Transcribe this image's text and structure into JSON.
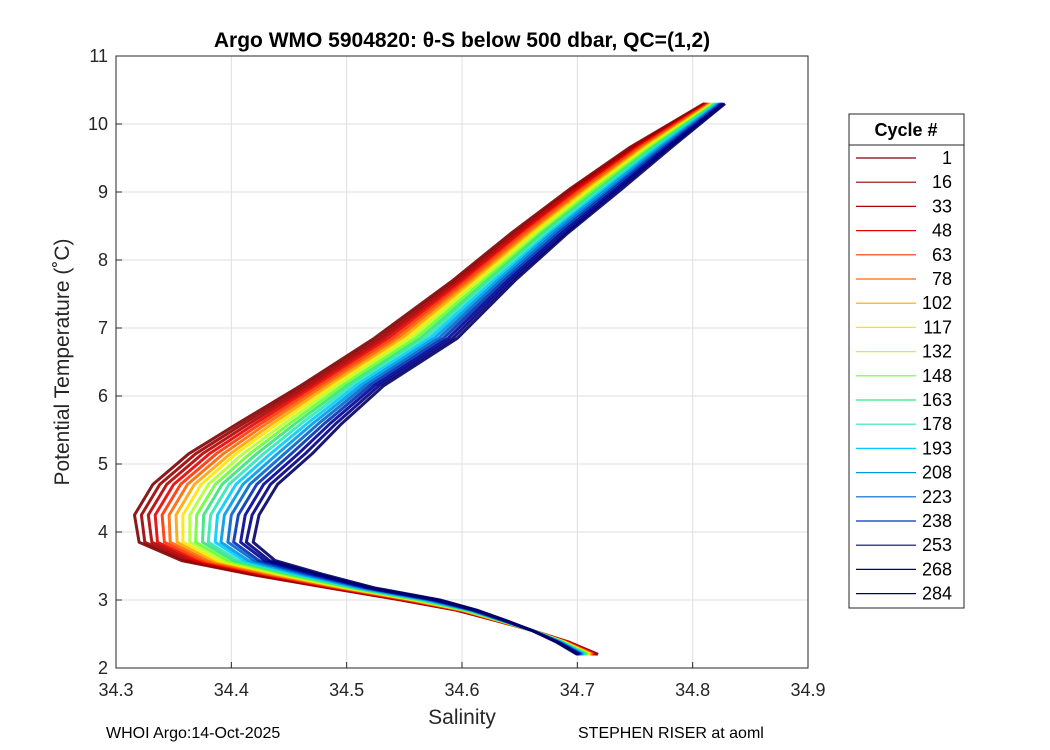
{
  "chart_data": {
    "type": "line",
    "title": "Argo WMO 5904820: θ-S below 500 dbar,  QC=(1,2)",
    "xlabel": "Salinity",
    "ylabel": "Potential Temperature (˚C)",
    "xlim": [
      34.3,
      34.9
    ],
    "ylim": [
      2,
      11
    ],
    "xticks": [
      "34.3",
      "34.4",
      "34.5",
      "34.6",
      "34.7",
      "34.8",
      "34.9"
    ],
    "yticks": [
      "2",
      "3",
      "4",
      "5",
      "6",
      "7",
      "8",
      "9",
      "10",
      "11"
    ],
    "grid": true,
    "legend": {
      "title": "Cycle #",
      "placement": "right",
      "entries": [
        "1",
        "16",
        "33",
        "48",
        "63",
        "78",
        "102",
        "117",
        "132",
        "148",
        "163",
        "178",
        "193",
        "208",
        "223",
        "238",
        "253",
        "268",
        "284"
      ],
      "colors": [
        "#800000",
        "#990000",
        "#b30000",
        "#e60000",
        "#ff3300",
        "#ff6600",
        "#ffa500",
        "#ffe600",
        "#b3ff33",
        "#66ff33",
        "#33e67f",
        "#33e6b3",
        "#00ccff",
        "#0099e6",
        "#0066cc",
        "#0033b3",
        "#000099",
        "#000080",
        "#000066"
      ]
    },
    "series": [
      {
        "name": "1",
        "color": "#800000",
        "s": [
          34.718,
          34.693,
          34.661,
          34.629,
          34.595,
          34.547,
          34.484,
          34.416,
          34.357,
          34.32,
          34.316,
          34.332,
          34.363,
          34.406,
          34.46,
          34.524,
          34.592,
          34.643,
          34.694,
          34.745,
          34.81
        ],
        "t": [
          2.2,
          2.38,
          2.55,
          2.7,
          2.85,
          3.0,
          3.18,
          3.38,
          3.58,
          3.85,
          4.25,
          4.7,
          5.15,
          5.6,
          6.15,
          6.85,
          7.7,
          8.4,
          9.05,
          9.65,
          10.3
        ]
      },
      {
        "name": "16",
        "color": "#990000",
        "s": [
          34.717,
          34.692,
          34.661,
          34.629,
          34.596,
          34.548,
          34.486,
          34.419,
          34.361,
          34.325,
          34.322,
          34.338,
          34.369,
          34.411,
          34.464,
          34.528,
          34.595,
          34.646,
          34.696,
          34.747,
          34.811
        ],
        "t": [
          2.2,
          2.38,
          2.55,
          2.7,
          2.85,
          3.0,
          3.18,
          3.38,
          3.58,
          3.85,
          4.25,
          4.7,
          5.15,
          5.6,
          6.15,
          6.85,
          7.7,
          8.4,
          9.05,
          9.65,
          10.3
        ]
      },
      {
        "name": "33",
        "color": "#b30000",
        "s": [
          34.716,
          34.692,
          34.661,
          34.63,
          34.597,
          34.55,
          34.488,
          34.423,
          34.366,
          34.331,
          34.328,
          34.344,
          34.375,
          34.416,
          34.468,
          34.532,
          34.598,
          34.649,
          34.699,
          34.749,
          34.812
        ],
        "t": [
          2.2,
          2.38,
          2.55,
          2.7,
          2.85,
          3.0,
          3.18,
          3.38,
          3.58,
          3.85,
          4.25,
          4.7,
          5.15,
          5.6,
          6.15,
          6.85,
          7.7,
          8.4,
          9.05,
          9.65,
          10.3
        ]
      },
      {
        "name": "48",
        "color": "#e60000",
        "s": [
          34.715,
          34.691,
          34.661,
          34.63,
          34.598,
          34.552,
          34.49,
          34.426,
          34.37,
          34.336,
          34.334,
          34.35,
          34.381,
          34.421,
          34.472,
          34.536,
          34.601,
          34.651,
          34.701,
          34.751,
          34.813
        ],
        "t": [
          2.2,
          2.38,
          2.55,
          2.7,
          2.85,
          3.0,
          3.18,
          3.38,
          3.58,
          3.85,
          4.25,
          4.7,
          5.15,
          5.6,
          6.15,
          6.85,
          7.7,
          8.4,
          9.05,
          9.65,
          10.3
        ]
      },
      {
        "name": "63",
        "color": "#ff3300",
        "s": [
          34.714,
          34.69,
          34.661,
          34.631,
          34.599,
          34.554,
          34.493,
          34.43,
          34.375,
          34.342,
          34.34,
          34.356,
          34.387,
          34.426,
          34.476,
          34.54,
          34.604,
          34.654,
          34.704,
          34.753,
          34.814
        ],
        "t": [
          2.2,
          2.38,
          2.55,
          2.7,
          2.85,
          3.0,
          3.18,
          3.38,
          3.58,
          3.85,
          4.25,
          4.7,
          5.15,
          5.6,
          6.15,
          6.85,
          7.7,
          8.4,
          9.05,
          9.65,
          10.3
        ]
      },
      {
        "name": "78",
        "color": "#ff6600",
        "s": [
          34.713,
          34.69,
          34.661,
          34.631,
          34.6,
          34.556,
          34.495,
          34.433,
          34.379,
          34.347,
          34.346,
          34.362,
          34.393,
          34.431,
          34.48,
          34.544,
          34.607,
          34.657,
          34.706,
          34.755,
          34.815
        ],
        "t": [
          2.2,
          2.38,
          2.55,
          2.7,
          2.85,
          3.0,
          3.18,
          3.38,
          3.58,
          3.85,
          4.25,
          4.7,
          5.15,
          5.6,
          6.15,
          6.85,
          7.7,
          8.4,
          9.05,
          9.65,
          10.3
        ]
      },
      {
        "name": "102",
        "color": "#ffa500",
        "s": [
          34.712,
          34.689,
          34.661,
          34.632,
          34.601,
          34.558,
          34.497,
          34.437,
          34.384,
          34.353,
          34.352,
          34.368,
          34.399,
          34.436,
          34.484,
          34.548,
          34.61,
          34.66,
          34.709,
          34.757,
          34.816
        ],
        "t": [
          2.2,
          2.38,
          2.55,
          2.7,
          2.85,
          3.0,
          3.18,
          3.38,
          3.58,
          3.85,
          4.25,
          4.7,
          5.15,
          5.6,
          6.15,
          6.85,
          7.7,
          8.4,
          9.05,
          9.65,
          10.3
        ]
      },
      {
        "name": "117",
        "color": "#ffe600",
        "s": [
          34.711,
          34.689,
          34.661,
          34.632,
          34.602,
          34.559,
          34.499,
          34.44,
          34.388,
          34.358,
          34.358,
          34.374,
          34.404,
          34.441,
          34.488,
          34.552,
          34.613,
          34.662,
          34.711,
          34.759,
          34.817
        ],
        "t": [
          2.2,
          2.38,
          2.55,
          2.7,
          2.85,
          3.0,
          3.18,
          3.38,
          3.58,
          3.85,
          4.25,
          4.7,
          5.15,
          5.6,
          6.15,
          6.85,
          7.7,
          8.4,
          9.05,
          9.65,
          10.3
        ]
      },
      {
        "name": "132",
        "color": "#b3ff33",
        "s": [
          34.71,
          34.688,
          34.661,
          34.633,
          34.603,
          34.561,
          34.501,
          34.444,
          34.393,
          34.364,
          34.364,
          34.38,
          34.41,
          34.446,
          34.492,
          34.556,
          34.616,
          34.665,
          34.714,
          34.761,
          34.818
        ],
        "t": [
          2.2,
          2.38,
          2.55,
          2.7,
          2.85,
          3.0,
          3.18,
          3.38,
          3.58,
          3.85,
          4.25,
          4.7,
          5.15,
          5.6,
          6.15,
          6.85,
          7.7,
          8.4,
          9.05,
          9.65,
          10.3
        ]
      },
      {
        "name": "148",
        "color": "#66ff33",
        "s": [
          34.709,
          34.687,
          34.661,
          34.633,
          34.604,
          34.563,
          34.504,
          34.447,
          34.397,
          34.369,
          34.37,
          34.386,
          34.416,
          34.451,
          34.496,
          34.56,
          34.619,
          34.668,
          34.716,
          34.763,
          34.819
        ],
        "t": [
          2.2,
          2.38,
          2.55,
          2.7,
          2.85,
          3.0,
          3.18,
          3.38,
          3.58,
          3.85,
          4.25,
          4.7,
          5.15,
          5.6,
          6.15,
          6.85,
          7.7,
          8.4,
          9.05,
          9.65,
          10.3
        ]
      },
      {
        "name": "163",
        "color": "#33e67f",
        "s": [
          34.708,
          34.687,
          34.661,
          34.634,
          34.605,
          34.565,
          34.506,
          34.451,
          34.402,
          34.375,
          34.376,
          34.392,
          34.422,
          34.456,
          34.5,
          34.564,
          34.622,
          34.67,
          34.719,
          34.765,
          34.82
        ],
        "t": [
          2.2,
          2.38,
          2.55,
          2.7,
          2.85,
          3.0,
          3.18,
          3.38,
          3.58,
          3.85,
          4.25,
          4.7,
          5.15,
          5.6,
          6.15,
          6.85,
          7.7,
          8.4,
          9.05,
          9.65,
          10.3
        ]
      },
      {
        "name": "178",
        "color": "#33e6b3",
        "s": [
          34.707,
          34.686,
          34.661,
          34.634,
          34.606,
          34.567,
          34.508,
          34.454,
          34.406,
          34.38,
          34.382,
          34.398,
          34.428,
          34.461,
          34.504,
          34.568,
          34.625,
          34.673,
          34.721,
          34.767,
          34.821
        ],
        "t": [
          2.2,
          2.38,
          2.55,
          2.7,
          2.85,
          3.0,
          3.18,
          3.38,
          3.58,
          3.85,
          4.25,
          4.7,
          5.15,
          5.6,
          6.15,
          6.85,
          7.7,
          8.4,
          9.05,
          9.65,
          10.3
        ]
      },
      {
        "name": "193",
        "color": "#00ccff",
        "s": [
          34.706,
          34.686,
          34.661,
          34.635,
          34.607,
          34.569,
          34.51,
          34.458,
          34.411,
          34.386,
          34.388,
          34.404,
          34.434,
          34.466,
          34.508,
          34.572,
          34.628,
          34.676,
          34.724,
          34.769,
          34.822
        ],
        "t": [
          2.2,
          2.38,
          2.55,
          2.7,
          2.85,
          3.0,
          3.18,
          3.38,
          3.58,
          3.85,
          4.25,
          4.7,
          5.15,
          5.6,
          6.15,
          6.85,
          7.7,
          8.4,
          9.05,
          9.65,
          10.3
        ]
      },
      {
        "name": "208",
        "color": "#0099e6",
        "s": [
          34.705,
          34.685,
          34.661,
          34.635,
          34.608,
          34.571,
          34.512,
          34.461,
          34.415,
          34.391,
          34.394,
          34.41,
          34.44,
          34.471,
          34.512,
          34.576,
          34.631,
          34.678,
          34.726,
          34.771,
          34.823
        ],
        "t": [
          2.2,
          2.38,
          2.55,
          2.7,
          2.85,
          3.0,
          3.18,
          3.38,
          3.58,
          3.85,
          4.25,
          4.7,
          5.15,
          5.6,
          6.15,
          6.85,
          7.7,
          8.4,
          9.05,
          9.65,
          10.3
        ]
      },
      {
        "name": "223",
        "color": "#0066cc",
        "s": [
          34.704,
          34.684,
          34.661,
          34.636,
          34.609,
          34.573,
          34.515,
          34.465,
          34.42,
          34.397,
          34.4,
          34.416,
          34.446,
          34.476,
          34.516,
          34.58,
          34.634,
          34.681,
          34.729,
          34.773,
          34.824
        ],
        "t": [
          2.2,
          2.38,
          2.55,
          2.7,
          2.85,
          3.0,
          3.18,
          3.38,
          3.58,
          3.85,
          4.25,
          4.7,
          5.15,
          5.6,
          6.15,
          6.85,
          7.7,
          8.4,
          9.05,
          9.65,
          10.3
        ]
      },
      {
        "name": "238",
        "color": "#0033b3",
        "s": [
          34.703,
          34.684,
          34.661,
          34.636,
          34.61,
          34.575,
          34.517,
          34.468,
          34.424,
          34.402,
          34.406,
          34.422,
          34.452,
          34.481,
          34.52,
          34.584,
          34.637,
          34.684,
          34.731,
          34.775,
          34.825
        ],
        "t": [
          2.2,
          2.38,
          2.55,
          2.7,
          2.85,
          3.0,
          3.18,
          3.38,
          3.58,
          3.85,
          4.25,
          4.7,
          5.15,
          5.6,
          6.15,
          6.85,
          7.7,
          8.4,
          9.05,
          9.65,
          10.3
        ]
      },
      {
        "name": "253",
        "color": "#000099",
        "s": [
          34.702,
          34.683,
          34.661,
          34.637,
          34.611,
          34.577,
          34.519,
          34.472,
          34.429,
          34.408,
          34.412,
          34.428,
          34.458,
          34.486,
          34.524,
          34.588,
          34.64,
          34.687,
          34.734,
          34.777,
          34.826
        ],
        "t": [
          2.2,
          2.38,
          2.55,
          2.7,
          2.85,
          3.0,
          3.18,
          3.38,
          3.58,
          3.85,
          4.25,
          4.7,
          5.15,
          5.6,
          6.15,
          6.85,
          7.7,
          8.4,
          9.05,
          9.65,
          10.3
        ]
      },
      {
        "name": "268",
        "color": "#000080",
        "s": [
          34.701,
          34.683,
          34.661,
          34.637,
          34.612,
          34.579,
          34.521,
          34.475,
          34.433,
          34.413,
          34.418,
          34.434,
          34.464,
          34.491,
          34.528,
          34.592,
          34.643,
          34.69,
          34.736,
          34.779,
          34.827
        ],
        "t": [
          2.2,
          2.38,
          2.55,
          2.7,
          2.85,
          3.0,
          3.18,
          3.38,
          3.58,
          3.85,
          4.25,
          4.7,
          5.15,
          5.6,
          6.15,
          6.85,
          7.7,
          8.4,
          9.05,
          9.65,
          10.3
        ]
      },
      {
        "name": "284",
        "color": "#000066",
        "s": [
          34.7,
          34.682,
          34.661,
          34.638,
          34.613,
          34.581,
          34.524,
          34.479,
          34.438,
          34.419,
          34.424,
          34.44,
          34.47,
          34.496,
          34.532,
          34.596,
          34.646,
          34.692,
          34.739,
          34.781,
          34.828
        ],
        "t": [
          2.2,
          2.38,
          2.55,
          2.7,
          2.85,
          3.0,
          3.18,
          3.38,
          3.58,
          3.85,
          4.25,
          4.7,
          5.15,
          5.6,
          6.15,
          6.85,
          7.7,
          8.4,
          9.05,
          9.65,
          10.3
        ]
      }
    ]
  },
  "footer": {
    "left": "WHOI Argo:14-Oct-2025",
    "right": "STEPHEN RISER at aoml"
  }
}
